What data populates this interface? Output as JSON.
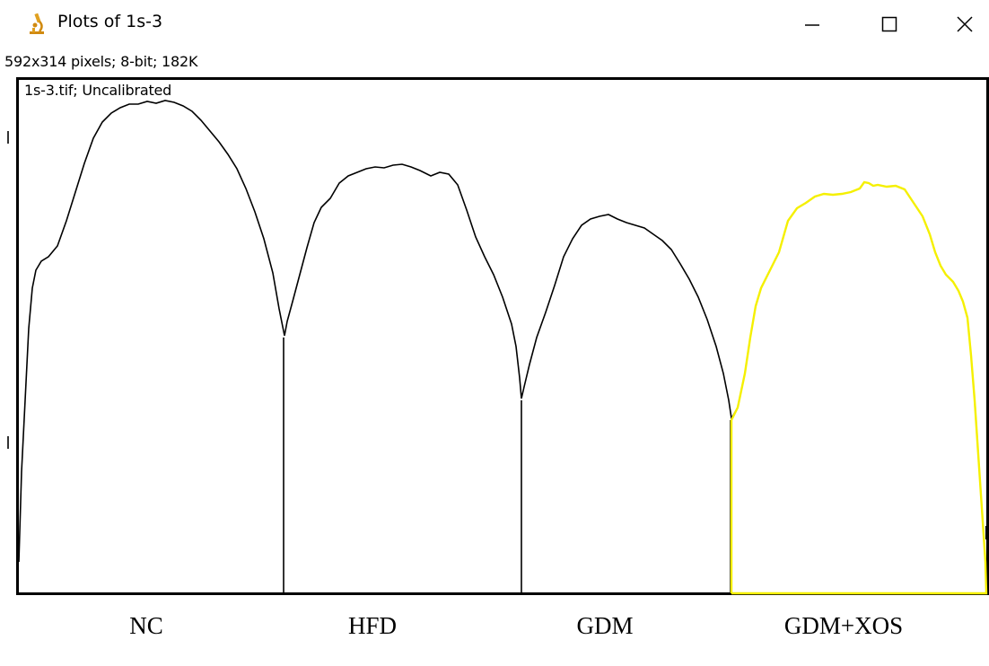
{
  "window": {
    "title": "Plots of 1s-3",
    "icon": "microscope-icon",
    "controls": {
      "minimize": "minimize-icon",
      "maximize": "maximize-icon",
      "close": "close-icon"
    }
  },
  "image_info": "592x314 pixels; 8-bit; 182K",
  "plot": {
    "label": "1s-3.tif; Uncalibrated",
    "line_color": "#000000",
    "highlight_color": "#ffff00"
  },
  "groups": [
    "NC",
    "HFD",
    "GDM",
    "GDM+XOS"
  ]
}
